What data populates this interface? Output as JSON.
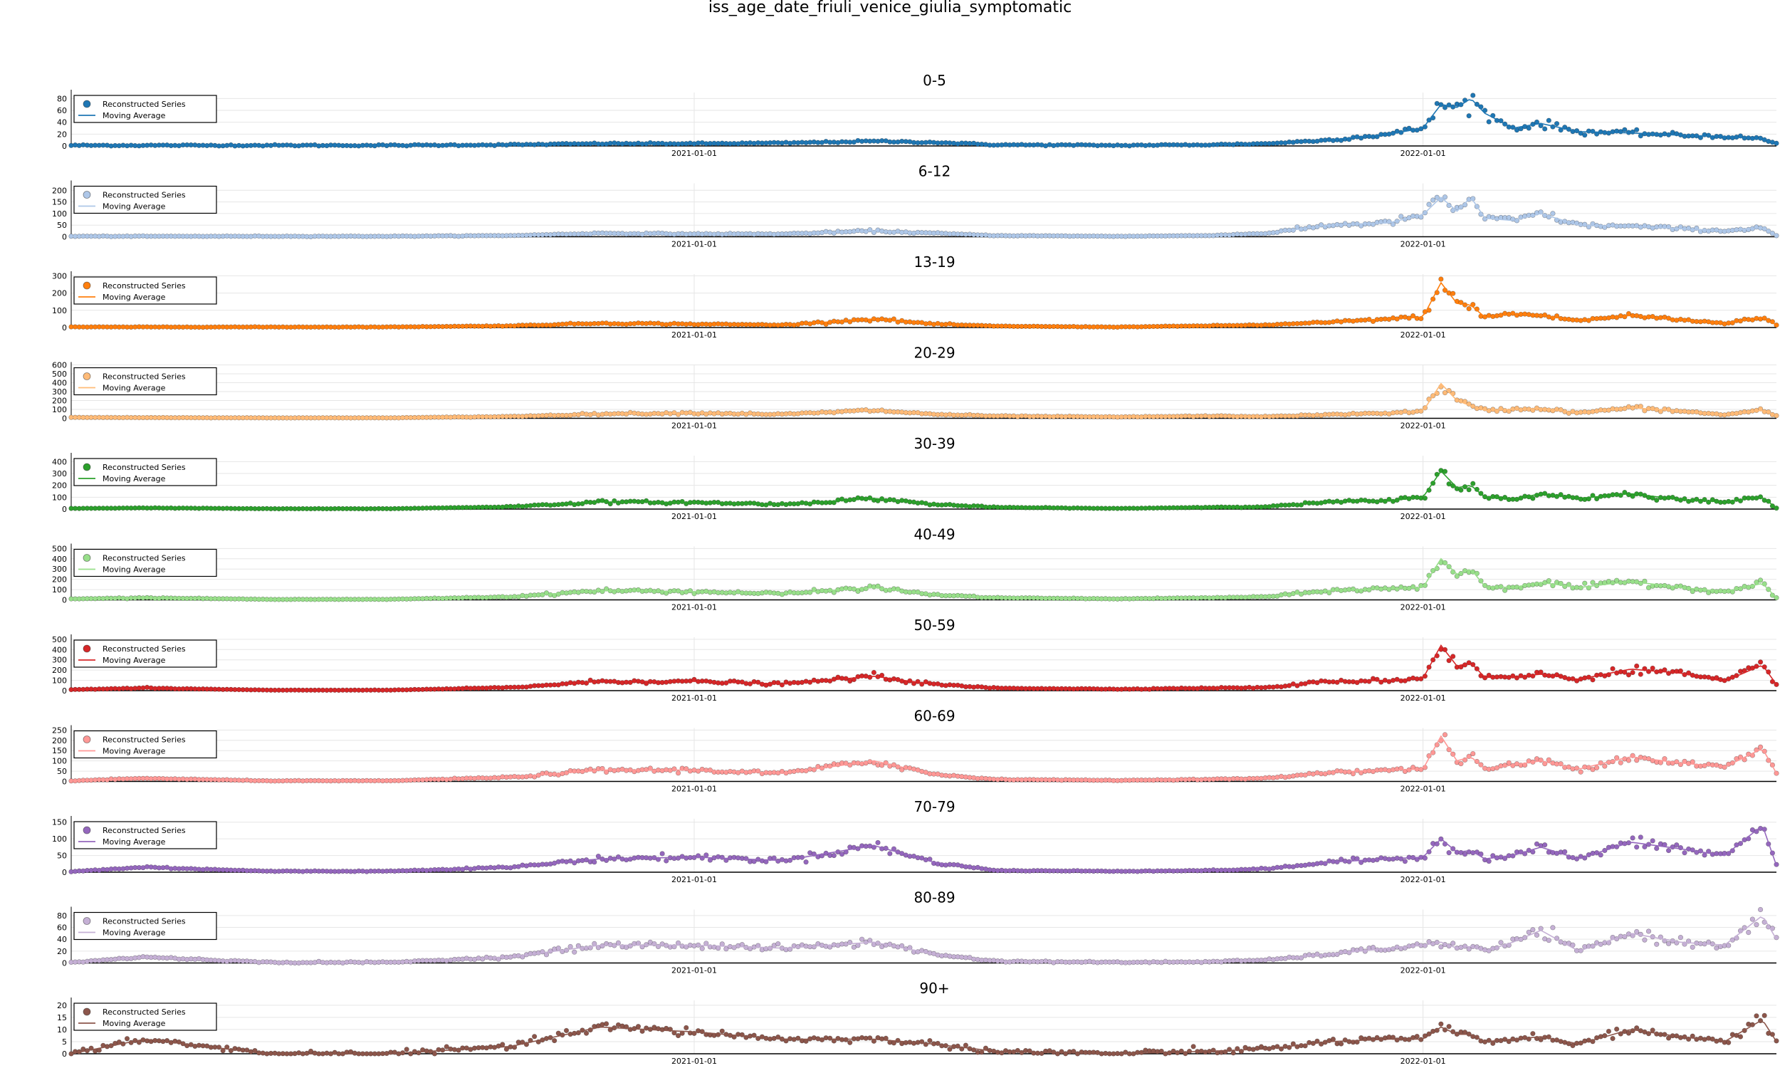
{
  "figure": {
    "title": "iss_age_date_friuli_venice_giulia_symptomatic"
  },
  "legend_labels": {
    "scatter": "Reconstructed Series",
    "line": "Moving Average"
  },
  "chart_data": [
    {
      "type": "scatter",
      "title": "0-5",
      "color": "#1f77b4",
      "ylim": [
        0,
        90
      ],
      "yticks": [
        0,
        20,
        40,
        60,
        80
      ],
      "x_range": [
        "2020-02-24",
        "2022-06-27"
      ],
      "xticks": [
        "2021-01-01",
        "2022-01-01"
      ],
      "legend": "top-left",
      "series": [
        {
          "name": "Reconstructed Series",
          "style": "points"
        },
        {
          "name": "Moving Average",
          "style": "line"
        }
      ],
      "x": [
        "2020-02-24",
        "2020-04-01",
        "2020-06-01",
        "2020-08-01",
        "2020-10-01",
        "2020-11-15",
        "2021-01-01",
        "2021-02-15",
        "2021-04-01",
        "2021-05-01",
        "2021-06-01",
        "2021-08-01",
        "2021-09-15",
        "2021-10-15",
        "2021-11-15",
        "2021-12-15",
        "2022-01-01",
        "2022-01-10",
        "2022-01-18",
        "2022-01-25",
        "2022-02-01",
        "2022-02-15",
        "2022-03-01",
        "2022-03-20",
        "2022-04-15",
        "2022-05-10",
        "2022-06-01",
        "2022-06-20",
        "2022-06-27"
      ],
      "values": [
        1,
        1,
        1,
        1,
        2,
        4,
        4,
        5,
        8,
        6,
        2,
        1,
        2,
        4,
        10,
        20,
        30,
        70,
        65,
        80,
        55,
        30,
        38,
        24,
        22,
        18,
        16,
        12,
        4
      ]
    },
    {
      "type": "scatter",
      "title": "6-12",
      "color": "#aec7e8",
      "ylim": [
        0,
        230
      ],
      "yticks": [
        0,
        50,
        100,
        150,
        200
      ],
      "x_range": [
        "2020-02-24",
        "2022-06-27"
      ],
      "xticks": [
        "2021-01-01",
        "2022-01-01"
      ],
      "legend": "top-left",
      "series": [
        {
          "name": "Reconstructed Series",
          "style": "points"
        },
        {
          "name": "Moving Average",
          "style": "line"
        }
      ],
      "x": [
        "2020-02-24",
        "2020-04-01",
        "2020-06-01",
        "2020-08-01",
        "2020-10-01",
        "2020-11-15",
        "2021-01-01",
        "2021-02-15",
        "2021-04-01",
        "2021-05-01",
        "2021-06-01",
        "2021-08-01",
        "2021-09-15",
        "2021-10-15",
        "2021-11-15",
        "2021-12-15",
        "2022-01-01",
        "2022-01-10",
        "2022-01-18",
        "2022-01-25",
        "2022-02-01",
        "2022-02-15",
        "2022-03-01",
        "2022-03-20",
        "2022-04-15",
        "2022-05-10",
        "2022-06-01",
        "2022-06-20",
        "2022-06-27"
      ],
      "values": [
        2,
        2,
        2,
        2,
        5,
        15,
        12,
        12,
        25,
        15,
        5,
        2,
        5,
        15,
        50,
        60,
        95,
        170,
        110,
        170,
        80,
        70,
        100,
        50,
        45,
        35,
        25,
        40,
        5
      ]
    },
    {
      "type": "scatter",
      "title": "13-19",
      "color": "#ff7f0e",
      "ylim": [
        0,
        310
      ],
      "yticks": [
        0,
        100,
        200,
        300
      ],
      "x_range": [
        "2020-02-24",
        "2022-06-27"
      ],
      "xticks": [
        "2021-01-01",
        "2022-01-01"
      ],
      "legend": "top-left",
      "series": [
        {
          "name": "Reconstructed Series",
          "style": "points"
        },
        {
          "name": "Moving Average",
          "style": "line"
        }
      ],
      "x": [
        "2020-02-24",
        "2020-04-01",
        "2020-06-01",
        "2020-08-01",
        "2020-10-01",
        "2020-11-15",
        "2021-01-01",
        "2021-02-15",
        "2021-04-01",
        "2021-05-01",
        "2021-06-01",
        "2021-08-01",
        "2021-09-15",
        "2021-10-15",
        "2021-11-15",
        "2021-12-15",
        "2022-01-01",
        "2022-01-10",
        "2022-01-18",
        "2022-01-25",
        "2022-02-01",
        "2022-02-15",
        "2022-03-01",
        "2022-03-20",
        "2022-04-15",
        "2022-05-10",
        "2022-06-01",
        "2022-06-20",
        "2022-06-27"
      ],
      "values": [
        3,
        3,
        3,
        3,
        10,
        25,
        20,
        15,
        50,
        20,
        8,
        3,
        10,
        15,
        30,
        50,
        60,
        260,
        140,
        130,
        60,
        80,
        70,
        40,
        70,
        45,
        25,
        60,
        15
      ]
    },
    {
      "type": "scatter",
      "title": "20-29",
      "color": "#ffbb78",
      "ylim": [
        0,
        600
      ],
      "yticks": [
        0,
        100,
        200,
        300,
        400,
        500,
        600
      ],
      "x_range": [
        "2020-02-24",
        "2022-06-27"
      ],
      "xticks": [
        "2021-01-01",
        "2022-01-01"
      ],
      "legend": "top-left",
      "series": [
        {
          "name": "Reconstructed Series",
          "style": "points"
        },
        {
          "name": "Moving Average",
          "style": "line"
        }
      ],
      "x": [
        "2020-02-24",
        "2020-04-01",
        "2020-06-01",
        "2020-08-01",
        "2020-10-01",
        "2020-11-15",
        "2021-01-01",
        "2021-02-15",
        "2021-04-01",
        "2021-05-01",
        "2021-06-01",
        "2021-08-01",
        "2021-09-15",
        "2021-10-15",
        "2021-11-15",
        "2021-12-15",
        "2022-01-01",
        "2022-01-10",
        "2022-01-18",
        "2022-01-25",
        "2022-02-01",
        "2022-02-15",
        "2022-03-01",
        "2022-03-20",
        "2022-04-15",
        "2022-05-10",
        "2022-06-01",
        "2022-06-20",
        "2022-06-27"
      ],
      "values": [
        10,
        8,
        5,
        5,
        20,
        50,
        60,
        45,
        90,
        45,
        25,
        15,
        25,
        20,
        40,
        60,
        80,
        390,
        200,
        140,
        90,
        100,
        110,
        60,
        120,
        80,
        40,
        90,
        30
      ]
    },
    {
      "type": "scatter",
      "title": "30-39",
      "color": "#2ca02c",
      "ylim": [
        0,
        450
      ],
      "yticks": [
        0,
        100,
        200,
        300,
        400
      ],
      "x_range": [
        "2020-02-24",
        "2022-06-27"
      ],
      "xticks": [
        "2021-01-01",
        "2022-01-01"
      ],
      "legend": "top-left",
      "series": [
        {
          "name": "Reconstructed Series",
          "style": "points"
        },
        {
          "name": "Moving Average",
          "style": "line"
        }
      ],
      "x": [
        "2020-02-24",
        "2020-04-01",
        "2020-06-01",
        "2020-08-01",
        "2020-10-01",
        "2020-11-15",
        "2021-01-01",
        "2021-02-15",
        "2021-04-01",
        "2021-05-01",
        "2021-06-01",
        "2021-08-01",
        "2021-09-15",
        "2021-10-15",
        "2021-11-15",
        "2021-12-15",
        "2022-01-01",
        "2022-01-10",
        "2022-01-18",
        "2022-01-25",
        "2022-02-01",
        "2022-02-15",
        "2022-03-01",
        "2022-03-20",
        "2022-04-15",
        "2022-05-10",
        "2022-06-01",
        "2022-06-20",
        "2022-06-27"
      ],
      "values": [
        5,
        10,
        3,
        3,
        20,
        60,
        55,
        40,
        90,
        40,
        15,
        5,
        15,
        20,
        60,
        70,
        100,
        320,
        180,
        200,
        100,
        80,
        130,
        90,
        130,
        80,
        60,
        100,
        10
      ]
    },
    {
      "type": "scatter",
      "title": "40-49",
      "color": "#98df8a",
      "ylim": [
        0,
        520
      ],
      "yticks": [
        0,
        100,
        200,
        300,
        400,
        500
      ],
      "x_range": [
        "2020-02-24",
        "2022-06-27"
      ],
      "xticks": [
        "2021-01-01",
        "2022-01-01"
      ],
      "legend": "top-left",
      "series": [
        {
          "name": "Reconstructed Series",
          "style": "points"
        },
        {
          "name": "Moving Average",
          "style": "line"
        }
      ],
      "x": [
        "2020-02-24",
        "2020-04-01",
        "2020-06-01",
        "2020-08-01",
        "2020-10-01",
        "2020-11-15",
        "2021-01-01",
        "2021-02-15",
        "2021-04-01",
        "2021-05-01",
        "2021-06-01",
        "2021-08-01",
        "2021-09-15",
        "2021-10-15",
        "2021-11-15",
        "2021-12-15",
        "2022-01-01",
        "2022-01-10",
        "2022-01-18",
        "2022-01-25",
        "2022-02-01",
        "2022-02-15",
        "2022-03-01",
        "2022-03-20",
        "2022-04-15",
        "2022-05-10",
        "2022-06-01",
        "2022-06-20",
        "2022-06-27"
      ],
      "values": [
        10,
        20,
        5,
        5,
        30,
        90,
        80,
        60,
        120,
        50,
        20,
        10,
        20,
        30,
        90,
        110,
        120,
        400,
        250,
        300,
        130,
        120,
        170,
        120,
        180,
        120,
        80,
        160,
        20
      ]
    },
    {
      "type": "scatter",
      "title": "50-59",
      "color": "#d62728",
      "ylim": [
        0,
        520
      ],
      "yticks": [
        0,
        100,
        200,
        300,
        400,
        500
      ],
      "x_range": [
        "2020-02-24",
        "2022-06-27"
      ],
      "xticks": [
        "2021-01-01",
        "2022-01-01"
      ],
      "legend": "top-left",
      "series": [
        {
          "name": "Reconstructed Series",
          "style": "points"
        },
        {
          "name": "Moving Average",
          "style": "line"
        }
      ],
      "x": [
        "2020-02-24",
        "2020-04-01",
        "2020-06-01",
        "2020-08-01",
        "2020-10-01",
        "2020-11-15",
        "2021-01-01",
        "2021-02-15",
        "2021-04-01",
        "2021-05-01",
        "2021-06-01",
        "2021-08-01",
        "2021-09-15",
        "2021-10-15",
        "2021-11-15",
        "2021-12-15",
        "2022-01-01",
        "2022-01-10",
        "2022-01-18",
        "2022-01-25",
        "2022-02-01",
        "2022-02-15",
        "2022-03-01",
        "2022-03-20",
        "2022-04-15",
        "2022-05-10",
        "2022-06-01",
        "2022-06-20",
        "2022-06-27"
      ],
      "values": [
        10,
        25,
        5,
        5,
        30,
        90,
        90,
        65,
        140,
        60,
        25,
        15,
        25,
        30,
        90,
        100,
        120,
        440,
        240,
        270,
        130,
        130,
        160,
        110,
        210,
        170,
        90,
        250,
        60
      ]
    },
    {
      "type": "scatter",
      "title": "60-69",
      "color": "#ff9896",
      "ylim": [
        0,
        260
      ],
      "yticks": [
        0,
        50,
        100,
        150,
        200,
        250
      ],
      "x_range": [
        "2020-02-24",
        "2022-06-27"
      ],
      "xticks": [
        "2021-01-01",
        "2022-01-01"
      ],
      "legend": "top-left",
      "series": [
        {
          "name": "Reconstructed Series",
          "style": "points"
        },
        {
          "name": "Moving Average",
          "style": "line"
        }
      ],
      "x": [
        "2020-02-24",
        "2020-04-01",
        "2020-06-01",
        "2020-08-01",
        "2020-10-01",
        "2020-11-15",
        "2021-01-01",
        "2021-02-15",
        "2021-04-01",
        "2021-05-01",
        "2021-06-01",
        "2021-08-01",
        "2021-09-15",
        "2021-10-15",
        "2021-11-15",
        "2021-12-15",
        "2022-01-01",
        "2022-01-10",
        "2022-01-18",
        "2022-01-25",
        "2022-02-01",
        "2022-02-15",
        "2022-03-01",
        "2022-03-20",
        "2022-04-15",
        "2022-05-10",
        "2022-06-01",
        "2022-06-20",
        "2022-06-27"
      ],
      "values": [
        3,
        15,
        3,
        3,
        20,
        55,
        55,
        40,
        100,
        35,
        10,
        5,
        10,
        15,
        45,
        55,
        60,
        220,
        100,
        120,
        60,
        80,
        100,
        60,
        120,
        90,
        70,
        160,
        40
      ]
    },
    {
      "type": "scatter",
      "title": "70-79",
      "color": "#9467bd",
      "ylim": [
        0,
        160
      ],
      "yticks": [
        0,
        50,
        100,
        150
      ],
      "x_range": [
        "2020-02-24",
        "2022-06-27"
      ],
      "xticks": [
        "2021-01-01",
        "2022-01-01"
      ],
      "legend": "top-left",
      "series": [
        {
          "name": "Reconstructed Series",
          "style": "points"
        },
        {
          "name": "Moving Average",
          "style": "line"
        }
      ],
      "x": [
        "2020-02-24",
        "2020-04-01",
        "2020-06-01",
        "2020-08-01",
        "2020-10-01",
        "2020-11-15",
        "2021-01-01",
        "2021-02-15",
        "2021-04-01",
        "2021-05-01",
        "2021-06-01",
        "2021-08-01",
        "2021-09-15",
        "2021-10-15",
        "2021-11-15",
        "2021-12-15",
        "2022-01-01",
        "2022-01-10",
        "2022-01-18",
        "2022-01-25",
        "2022-02-01",
        "2022-02-15",
        "2022-03-01",
        "2022-03-20",
        "2022-04-15",
        "2022-05-10",
        "2022-06-01",
        "2022-06-20",
        "2022-06-27"
      ],
      "values": [
        2,
        15,
        3,
        3,
        15,
        40,
        45,
        35,
        80,
        30,
        5,
        3,
        5,
        10,
        30,
        40,
        45,
        100,
        60,
        65,
        40,
        50,
        75,
        40,
        90,
        70,
        50,
        140,
        20
      ]
    },
    {
      "type": "scatter",
      "title": "80-89",
      "color": "#c5b0d5",
      "ylim": [
        0,
        90
      ],
      "yticks": [
        0,
        20,
        40,
        60,
        80
      ],
      "x_range": [
        "2020-02-24",
        "2022-06-27"
      ],
      "xticks": [
        "2021-01-01",
        "2022-01-01"
      ],
      "legend": "top-left",
      "series": [
        {
          "name": "Reconstructed Series",
          "style": "points"
        },
        {
          "name": "Moving Average",
          "style": "line"
        }
      ],
      "x": [
        "2020-02-24",
        "2020-04-01",
        "2020-06-01",
        "2020-08-01",
        "2020-10-01",
        "2020-11-15",
        "2021-01-01",
        "2021-02-15",
        "2021-04-01",
        "2021-05-01",
        "2021-06-01",
        "2021-08-01",
        "2021-09-15",
        "2021-10-15",
        "2021-11-15",
        "2021-12-15",
        "2022-01-01",
        "2022-01-10",
        "2022-01-18",
        "2022-01-25",
        "2022-02-01",
        "2022-02-15",
        "2022-03-01",
        "2022-03-20",
        "2022-04-15",
        "2022-05-10",
        "2022-06-01",
        "2022-06-20",
        "2022-06-27"
      ],
      "values": [
        1,
        10,
        1,
        1,
        10,
        30,
        30,
        25,
        35,
        15,
        3,
        1,
        2,
        5,
        15,
        25,
        30,
        35,
        25,
        28,
        20,
        35,
        55,
        20,
        50,
        35,
        30,
        80,
        40
      ]
    },
    {
      "type": "scatter",
      "title": "90+",
      "color": "#8c564b",
      "ylim": [
        0,
        22
      ],
      "yticks": [
        0,
        5,
        10,
        15,
        20
      ],
      "x_range": [
        "2020-02-24",
        "2022-06-27"
      ],
      "xticks": [
        "2021-01-01",
        "2022-01-01"
      ],
      "legend": "top-left",
      "series": [
        {
          "name": "Reconstructed Series",
          "style": "points"
        },
        {
          "name": "Moving Average",
          "style": "line"
        }
      ],
      "x": [
        "2020-02-24",
        "2020-04-01",
        "2020-06-01",
        "2020-08-01",
        "2020-10-01",
        "2020-11-15",
        "2021-01-01",
        "2021-02-15",
        "2021-04-01",
        "2021-05-01",
        "2021-06-01",
        "2021-08-01",
        "2021-09-15",
        "2021-10-15",
        "2021-11-15",
        "2021-12-15",
        "2022-01-01",
        "2022-01-10",
        "2022-01-18",
        "2022-01-25",
        "2022-02-01",
        "2022-02-15",
        "2022-03-01",
        "2022-03-20",
        "2022-04-15",
        "2022-05-10",
        "2022-06-01",
        "2022-06-20",
        "2022-06-27"
      ],
      "values": [
        0,
        6,
        0,
        0,
        3,
        11,
        9,
        6,
        6,
        4,
        1,
        0,
        1,
        2,
        5,
        6,
        6,
        11,
        8,
        8,
        5,
        6,
        7,
        4,
        10,
        7,
        5,
        14,
        5
      ]
    }
  ]
}
